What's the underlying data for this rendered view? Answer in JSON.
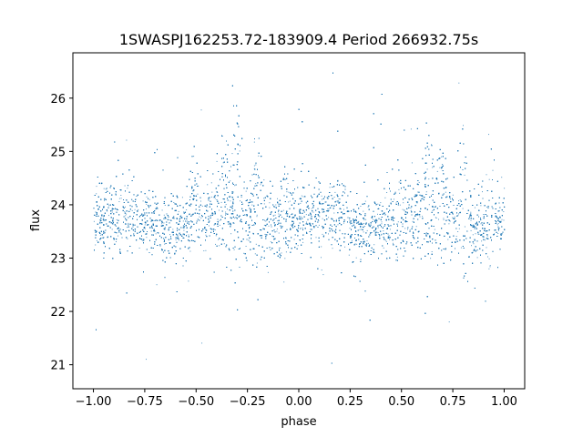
{
  "chart_data": {
    "type": "scatter",
    "title": "1SWASPJ162253.72-183909.4 Period 266932.75s",
    "xlabel": "phase",
    "ylabel": "flux",
    "xlim": [
      -1.1,
      1.1
    ],
    "ylim": [
      20.55,
      26.85
    ],
    "x_ticks": [
      -1.0,
      -0.75,
      -0.5,
      -0.25,
      0.0,
      0.25,
      0.5,
      0.75,
      1.0
    ],
    "x_tick_labels": [
      "−1.00",
      "−0.75",
      "−0.50",
      "−0.25",
      "0.00",
      "0.25",
      "0.50",
      "0.75",
      "1.00"
    ],
    "y_ticks": [
      21,
      22,
      23,
      24,
      25,
      26
    ],
    "y_tick_labels": [
      "21",
      "22",
      "23",
      "24",
      "25",
      "26"
    ],
    "point_color": "#1f77b4",
    "grid": false,
    "legend": "none",
    "series": [
      {
        "baseline_flux": 23.7,
        "scatter_sigma": 0.32,
        "phase_range": [
          -1.0,
          1.0
        ],
        "n_points_approx": 12000,
        "outlier_range": [
          20.8,
          26.6
        ],
        "bright_phase_bumps": [
          {
            "phase": -0.52,
            "peak_flux": 24.7
          },
          {
            "phase": -0.37,
            "peak_flux": 25.2
          },
          {
            "phase": -0.31,
            "peak_flux": 25.3
          },
          {
            "phase": -0.2,
            "peak_flux": 25.1
          },
          {
            "phase": -0.07,
            "peak_flux": 24.8
          },
          {
            "phase": 0.48,
            "peak_flux": 24.7
          },
          {
            "phase": 0.63,
            "peak_flux": 25.2
          },
          {
            "phase": 0.69,
            "peak_flux": 25.3
          },
          {
            "phase": 0.8,
            "peak_flux": 25.1
          },
          {
            "phase": 0.93,
            "peak_flux": 24.8
          }
        ]
      }
    ]
  }
}
